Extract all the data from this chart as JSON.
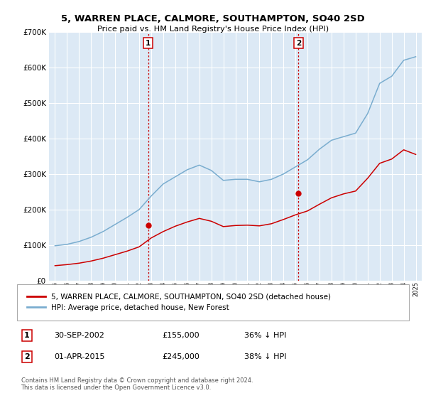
{
  "title": "5, WARREN PLACE, CALMORE, SOUTHAMPTON, SO40 2SD",
  "subtitle": "Price paid vs. HM Land Registry's House Price Index (HPI)",
  "hpi_label": "HPI: Average price, detached house, New Forest",
  "property_label": "5, WARREN PLACE, CALMORE, SOUTHAMPTON, SO40 2SD (detached house)",
  "red_color": "#cc0000",
  "blue_color": "#7aadcf",
  "plot_bg_color": "#dce9f5",
  "grid_color": "#ffffff",
  "marker1": {
    "date_idx": 7.75,
    "value": 155000,
    "label": "1",
    "date_str": "30-SEP-2002",
    "amount": "£155,000",
    "pct": "36% ↓ HPI"
  },
  "marker2": {
    "date_idx": 20.25,
    "value": 245000,
    "label": "2",
    "date_str": "01-APR-2015",
    "amount": "£245,000",
    "pct": "38% ↓ HPI"
  },
  "years": [
    1995,
    1996,
    1997,
    1998,
    1999,
    2000,
    2001,
    2002,
    2003,
    2004,
    2005,
    2006,
    2007,
    2008,
    2009,
    2010,
    2011,
    2012,
    2013,
    2014,
    2015,
    2016,
    2017,
    2018,
    2019,
    2020,
    2021,
    2022,
    2023,
    2024,
    2025
  ],
  "hpi_values": [
    98000,
    102000,
    110000,
    122000,
    138000,
    158000,
    178000,
    200000,
    238000,
    272000,
    292000,
    312000,
    325000,
    310000,
    282000,
    285000,
    285000,
    278000,
    285000,
    300000,
    320000,
    340000,
    370000,
    395000,
    405000,
    415000,
    470000,
    555000,
    575000,
    620000,
    630000
  ],
  "price_values": [
    42000,
    45000,
    49000,
    55000,
    63000,
    73000,
    83000,
    95000,
    120000,
    138000,
    153000,
    165000,
    175000,
    167000,
    152000,
    155000,
    156000,
    154000,
    160000,
    172000,
    185000,
    196000,
    215000,
    233000,
    244000,
    252000,
    288000,
    330000,
    342000,
    368000,
    355000
  ],
  "footer": "Contains HM Land Registry data © Crown copyright and database right 2024.\nThis data is licensed under the Open Government Licence v3.0.",
  "ylim": [
    0,
    700000
  ],
  "yticks": [
    0,
    100000,
    200000,
    300000,
    400000,
    500000,
    600000,
    700000
  ]
}
